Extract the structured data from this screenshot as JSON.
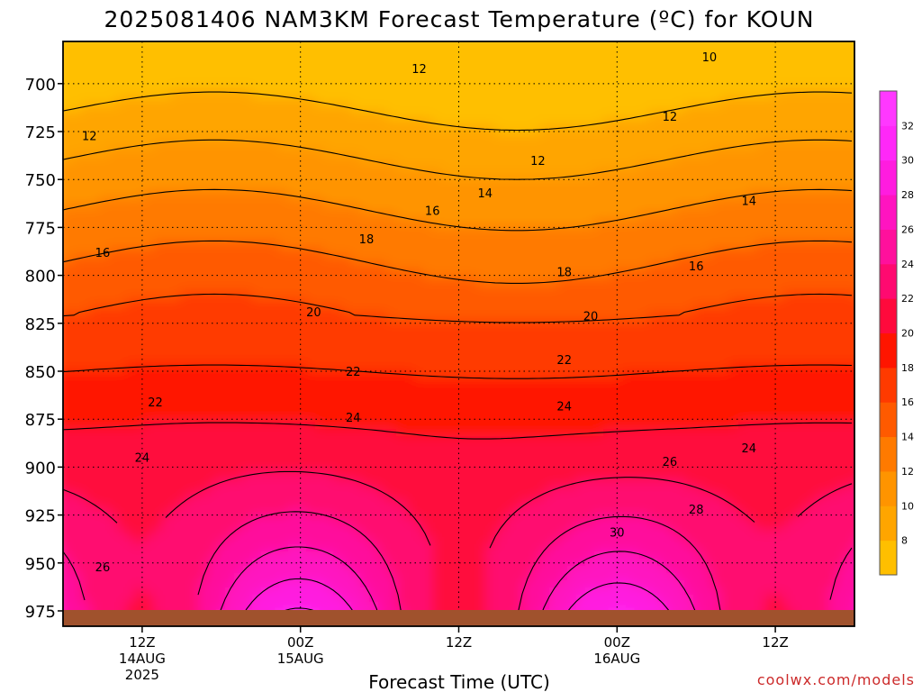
{
  "chart_data": {
    "type": "heatmap",
    "title": "2025081406 NAM3KM Forecast Temperature (ºC) for KOUN",
    "xlabel": "Forecast Time (UTC)",
    "ylabel": "",
    "y_scale": "linear",
    "y_inverted": true,
    "y_ticks": [
      "700",
      "725",
      "750",
      "775",
      "800",
      "825",
      "850",
      "875",
      "900",
      "925",
      "950",
      "975"
    ],
    "y_tick_values": [
      700,
      725,
      750,
      775,
      800,
      825,
      850,
      875,
      900,
      925,
      950,
      975
    ],
    "ylim": [
      678,
      983
    ],
    "x_ticks": [
      {
        "time": "2025-08-14 12Z",
        "lines": [
          "12Z",
          "14AUG",
          "2025"
        ]
      },
      {
        "time": "2025-08-15 00Z",
        "lines": [
          "00Z",
          "15AUG"
        ]
      },
      {
        "time": "2025-08-15 12Z",
        "lines": [
          "12Z"
        ]
      },
      {
        "time": "2025-08-16 00Z",
        "lines": [
          "00Z",
          "16AUG"
        ]
      },
      {
        "time": "2025-08-16 12Z",
        "lines": [
          "12Z"
        ]
      }
    ],
    "xlim": [
      "2025-08-14 06Z",
      "2025-08-16 18Z"
    ],
    "grid": "dotted horizontal and vertical lines at ticks",
    "colorbar": {
      "position": "right",
      "levels": [
        8,
        10,
        12,
        14,
        16,
        18,
        20,
        22,
        24,
        26,
        28,
        30,
        32
      ],
      "colors": [
        "#ffbf00",
        "#ffa500",
        "#ff9400",
        "#ff7a00",
        "#ff5a00",
        "#ff3a00",
        "#ff1500",
        "#ff0a3c",
        "#ff0a70",
        "#ff109c",
        "#ff14c0",
        "#ff1cdf",
        "#ff28f8",
        "#ff38ff"
      ]
    },
    "contour_labels": [
      {
        "text": "12",
        "time": "2025-08-14 08Z",
        "pressure": 727
      },
      {
        "text": "16",
        "time": "2025-08-14 09Z",
        "pressure": 788
      },
      {
        "text": "22",
        "time": "2025-08-14 13Z",
        "pressure": 866
      },
      {
        "text": "24",
        "time": "2025-08-14 12Z",
        "pressure": 895
      },
      {
        "text": "26",
        "time": "2025-08-14 09Z",
        "pressure": 952
      },
      {
        "text": "12",
        "time": "2025-08-15 09Z",
        "pressure": 692
      },
      {
        "text": "16",
        "time": "2025-08-15 10Z",
        "pressure": 766
      },
      {
        "text": "18",
        "time": "2025-08-15 05Z",
        "pressure": 781
      },
      {
        "text": "20",
        "time": "2025-08-15 01Z",
        "pressure": 819
      },
      {
        "text": "22",
        "time": "2025-08-15 04Z",
        "pressure": 850
      },
      {
        "text": "24",
        "time": "2025-08-15 04Z",
        "pressure": 874
      },
      {
        "text": "14",
        "time": "2025-08-15 14Z",
        "pressure": 757
      },
      {
        "text": "12",
        "time": "2025-08-15 18Z",
        "pressure": 740
      },
      {
        "text": "18",
        "time": "2025-08-15 20Z",
        "pressure": 798
      },
      {
        "text": "20",
        "time": "2025-08-15 22Z",
        "pressure": 821
      },
      {
        "text": "22",
        "time": "2025-08-15 20Z",
        "pressure": 844
      },
      {
        "text": "24",
        "time": "2025-08-15 20Z",
        "pressure": 868
      },
      {
        "text": "10",
        "time": "2025-08-16 07Z",
        "pressure": 686
      },
      {
        "text": "12",
        "time": "2025-08-16 04Z",
        "pressure": 717
      },
      {
        "text": "14",
        "time": "2025-08-16 10Z",
        "pressure": 761
      },
      {
        "text": "16",
        "time": "2025-08-16 06Z",
        "pressure": 795
      },
      {
        "text": "26",
        "time": "2025-08-16 04Z",
        "pressure": 897
      },
      {
        "text": "28",
        "time": "2025-08-16 06Z",
        "pressure": 922
      },
      {
        "text": "24",
        "time": "2025-08-16 10Z",
        "pressure": 890
      },
      {
        "text": "30",
        "time": "2025-08-16 00Z",
        "pressure": 934
      }
    ]
  },
  "footer": {
    "credit": "coolwx.com/models"
  }
}
